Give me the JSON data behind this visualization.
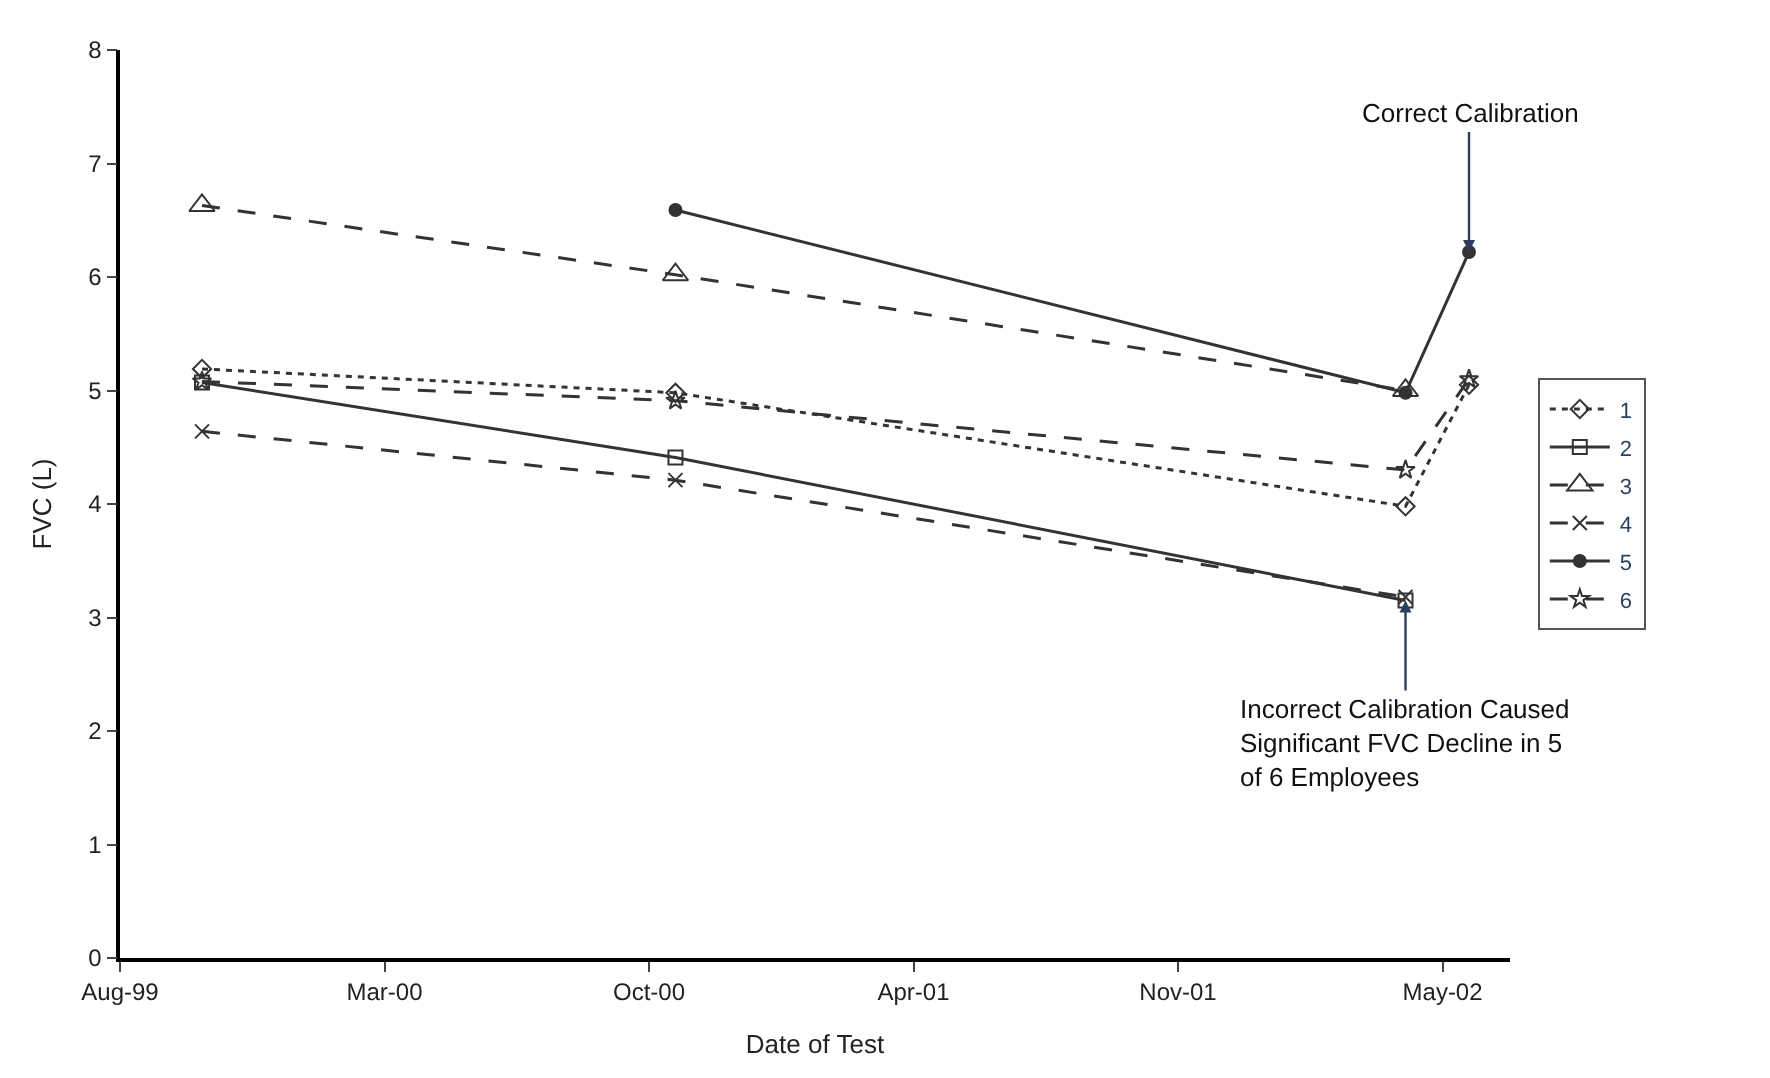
{
  "chart_data": {
    "type": "line",
    "xlabel": "Date of Test",
    "ylabel": "FVC (L)",
    "x": [
      "1999-11-01",
      "2000-10-24",
      "2002-04-29",
      "2002-06-16"
    ],
    "series": [
      {
        "name": "1",
        "color": "#333333",
        "marker": "diamond",
        "line_style": "dotted",
        "values": [
          5.19,
          4.98,
          3.98,
          5.05
        ]
      },
      {
        "name": "2",
        "color": "#333333",
        "marker": "square",
        "line_style": "solid",
        "values": [
          5.07,
          4.41,
          3.15,
          null
        ]
      },
      {
        "name": "3",
        "color": "#333333",
        "marker": "triangle",
        "line_style": "dashed",
        "values": [
          6.63,
          6.02,
          5.0,
          null
        ]
      },
      {
        "name": "4",
        "color": "#333333",
        "marker": "cross",
        "line_style": "dashed",
        "values": [
          4.64,
          4.21,
          3.18,
          null
        ]
      },
      {
        "name": "5",
        "color": "#333333",
        "marker": "circle",
        "line_style": "solid",
        "values": [
          null,
          6.59,
          4.98,
          6.22
        ]
      },
      {
        "name": "6",
        "color": "#333333",
        "marker": "star",
        "line_style": "dashed",
        "values": [
          5.08,
          4.91,
          4.3,
          5.1
        ]
      }
    ],
    "xlim": [
      "1999-08-31",
      "2002-07-17"
    ],
    "xticks": [
      {
        "value": "1999-08-31",
        "label": "Aug-99"
      },
      {
        "value": "2000-03-18",
        "label": "Mar-00"
      },
      {
        "value": "2000-10-04",
        "label": "Oct-00"
      },
      {
        "value": "2001-04-22",
        "label": "Apr-01"
      },
      {
        "value": "2001-11-08",
        "label": "Nov-01"
      },
      {
        "value": "2002-05-27",
        "label": "May-02"
      }
    ],
    "ylim": [
      0,
      8
    ],
    "yticks": [
      0,
      1,
      2,
      3,
      4,
      5,
      6,
      7,
      8
    ],
    "legend": "right",
    "annotations": [
      {
        "text": "Correct Calibration",
        "x": "2002-06-16",
        "y": 6.22
      },
      {
        "text": "Incorrect Calibration Caused\nSignificant FVC Decline in 5\nof 6 Employees",
        "x": "2002-04-29",
        "y": 3.15
      }
    ]
  }
}
